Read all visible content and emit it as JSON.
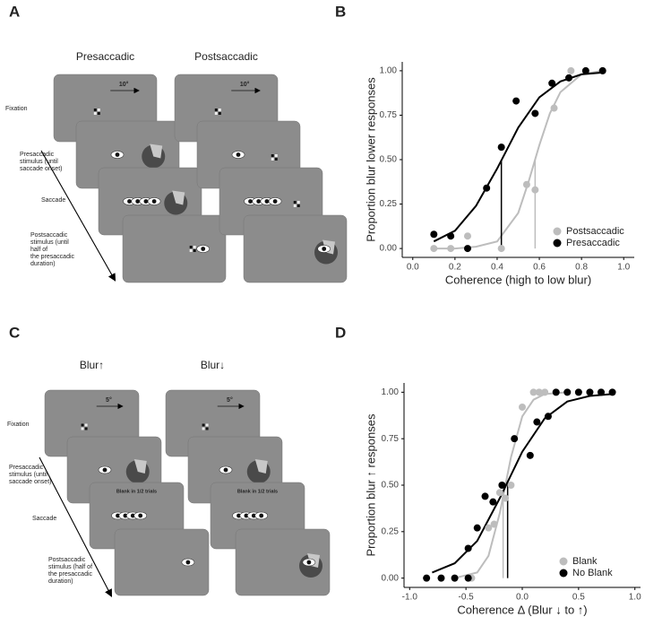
{
  "panel_labels": [
    "A",
    "B",
    "C",
    "D"
  ],
  "diagrams": [
    {
      "columns": [
        "Presaccadic",
        "Postsaccadic"
      ],
      "scale_labels": [
        "10°",
        "10°"
      ],
      "steps": [
        [
          "Fixation"
        ],
        [
          "Presaccadic",
          "stimulus (until",
          "saccade onset)"
        ],
        [
          "Saccade"
        ],
        [
          "Postsaccadic",
          "stimulus (until",
          "half of",
          "the presaccadic",
          "duration)"
        ]
      ]
    },
    {
      "columns": [
        "Blur↑",
        "Blur↓"
      ],
      "scale_labels": [
        "5°",
        "5°"
      ],
      "blank_labels": [
        "Blank in 1/2 trials",
        "Blank in 1/2 trials"
      ],
      "steps": [
        [
          "Fixation"
        ],
        [
          "Presaccadic",
          "stimulus (until",
          "saccade onset)"
        ],
        [
          "Saccade"
        ],
        [
          "Postsaccadic",
          "stimulus (half of",
          "the presaccadic",
          "duration)"
        ]
      ]
    }
  ],
  "chart_data": [
    {
      "type": "scatter",
      "x_label": "Coherence (high to low blur)",
      "y_label": "Proportion blur lower responses",
      "xlim": [
        -0.05,
        1.05
      ],
      "ylim": [
        -0.05,
        1.05
      ],
      "xticks": [
        {
          "value": 0,
          "label": "0.0"
        },
        {
          "value": 0.2,
          "label": "0.2"
        },
        {
          "value": 0.4,
          "label": "0.4"
        },
        {
          "value": 0.6,
          "label": "0.6"
        },
        {
          "value": 0.8,
          "label": "0.8"
        },
        {
          "value": 1,
          "label": "1.0"
        }
      ],
      "yticks": [
        {
          "value": 0,
          "label": "0.00"
        },
        {
          "value": 0.25,
          "label": "0.25"
        },
        {
          "value": 0.5,
          "label": "0.50"
        },
        {
          "value": 0.75,
          "label": "0.75"
        },
        {
          "value": 1,
          "label": "1.00"
        }
      ],
      "legend": "bottom-right",
      "series": [
        {
          "name": "Postsaccadic",
          "color": "#bdbdbd",
          "x": [
            0.1,
            0.18,
            0.26,
            0.42,
            0.54,
            0.58,
            0.67,
            0.75,
            0.9
          ],
          "values": [
            0,
            0,
            0.07,
            0,
            0.36,
            0.33,
            0.79,
            1,
            1
          ],
          "fit": {
            "x": [
              0.1,
              0.2,
              0.3,
              0.4,
              0.5,
              0.55,
              0.6,
              0.65,
              0.7,
              0.8,
              0.9
            ],
            "values": [
              0,
              0,
              0.01,
              0.04,
              0.2,
              0.38,
              0.58,
              0.76,
              0.88,
              0.98,
              1
            ]
          },
          "threshold": 0.58
        },
        {
          "name": "Presaccadic",
          "color": "#000000",
          "x": [
            0.1,
            0.18,
            0.26,
            0.35,
            0.42,
            0.49,
            0.58,
            0.66,
            0.74,
            0.82,
            0.9
          ],
          "values": [
            0.08,
            0.07,
            0,
            0.34,
            0.57,
            0.83,
            0.76,
            0.93,
            0.96,
            1,
            1
          ],
          "fit": {
            "x": [
              0.1,
              0.2,
              0.3,
              0.4,
              0.5,
              0.6,
              0.7,
              0.8,
              0.9
            ],
            "values": [
              0.04,
              0.1,
              0.24,
              0.45,
              0.68,
              0.85,
              0.94,
              0.98,
              0.99
            ]
          },
          "threshold": 0.42
        }
      ]
    },
    {
      "type": "scatter",
      "x_label": "Coherence Δ (Blur ↓ to ↑)",
      "y_label": "Proportion blur ↑ responses",
      "xlim": [
        -1.05,
        1.05
      ],
      "ylim": [
        -0.05,
        1.05
      ],
      "xticks": [
        {
          "value": -1,
          "label": "-1.0"
        },
        {
          "value": -0.5,
          "label": "-0.5"
        },
        {
          "value": 0,
          "label": "0.0"
        },
        {
          "value": 0.5,
          "label": "0.5"
        },
        {
          "value": 1,
          "label": "1.0"
        }
      ],
      "yticks": [
        {
          "value": 0,
          "label": "0.00"
        },
        {
          "value": 0.25,
          "label": "0.25"
        },
        {
          "value": 0.5,
          "label": "0.50"
        },
        {
          "value": 0.75,
          "label": "0.75"
        },
        {
          "value": 1,
          "label": "1.00"
        }
      ],
      "legend": "bottom-right",
      "series": [
        {
          "name": "Blank",
          "color": "#bdbdbd",
          "x": [
            -0.45,
            -0.3,
            -0.25,
            -0.2,
            -0.15,
            -0.1,
            0,
            0.1,
            0.15,
            0.2
          ],
          "values": [
            0,
            0.27,
            0.29,
            0.46,
            0.43,
            0.5,
            0.92,
            1,
            1,
            1
          ],
          "fit": {
            "x": [
              -0.6,
              -0.4,
              -0.3,
              -0.2,
              -0.1,
              0,
              0.1,
              0.2,
              0.4
            ],
            "values": [
              0,
              0.03,
              0.12,
              0.35,
              0.65,
              0.87,
              0.96,
              0.99,
              1
            ]
          },
          "threshold": -0.17
        },
        {
          "name": "No Blank",
          "color": "#000000",
          "x": [
            -0.85,
            -0.72,
            -0.6,
            -0.48,
            -0.48,
            -0.4,
            -0.33,
            -0.26,
            -0.18,
            -0.07,
            0.07,
            0.13,
            0.23,
            0.3,
            0.4,
            0.5,
            0.6,
            0.7,
            0.8
          ],
          "values": [
            0,
            0,
            0,
            0,
            0.16,
            0.27,
            0.44,
            0.41,
            0.5,
            0.75,
            0.66,
            0.84,
            0.87,
            1,
            1,
            1,
            1,
            1,
            1
          ],
          "fit": {
            "x": [
              -0.8,
              -0.6,
              -0.4,
              -0.2,
              0,
              0.2,
              0.4,
              0.6,
              0.8
            ],
            "values": [
              0.03,
              0.08,
              0.2,
              0.43,
              0.68,
              0.86,
              0.95,
              0.98,
              0.99
            ]
          },
          "threshold": -0.13
        }
      ]
    }
  ]
}
